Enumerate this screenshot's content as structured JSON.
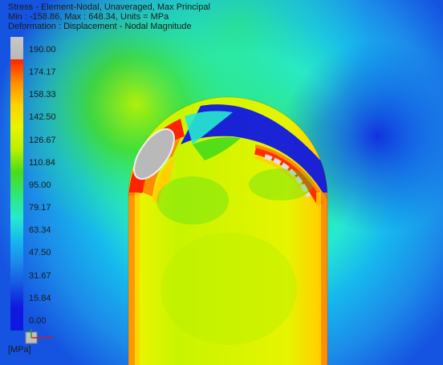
{
  "header": {
    "line1": "Stress - Element-Nodal, Unaveraged, Max Principal",
    "line2": "Min : -158.86, Max : 648.34, Units = MPa",
    "line3": "Deformation : Displacement - Nodal Magnitude"
  },
  "legend": {
    "units_label": "[MPa]",
    "ticks": [
      "190.00",
      "174.17",
      "158.33",
      "142.50",
      "126.67",
      "110.84",
      "95.00",
      "79.17",
      "63.34",
      "47.50",
      "31.67",
      "15.84",
      "0.00"
    ],
    "colors": [
      "#b8b8b8",
      "#ff2400",
      "#ff8c00",
      "#ffd100",
      "#e9f400",
      "#b7f000",
      "#46dc1a",
      "#2fe77b",
      "#27e9cf",
      "#16b8ee",
      "#1c89e9",
      "#1553e1",
      "#0f17e0"
    ],
    "overflow_color": "#c8c8c8"
  },
  "colors": {
    "background": "#ffffff",
    "field_low": "#0f17e0",
    "field_high": "#ff2400",
    "overflow": "#c8c8c8"
  }
}
